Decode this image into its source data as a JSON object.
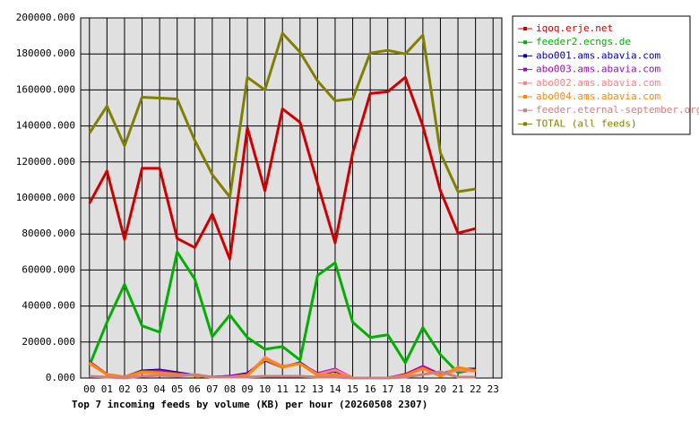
{
  "chart_data": {
    "type": "line",
    "title": "Top 7 incoming feeds by volume (KB) per hour (20260508 2307)",
    "categories": [
      "00",
      "01",
      "02",
      "03",
      "04",
      "05",
      "06",
      "07",
      "08",
      "09",
      "10",
      "11",
      "12",
      "13",
      "14",
      "15",
      "16",
      "17",
      "18",
      "19",
      "20",
      "21",
      "22",
      "23"
    ],
    "ylim": [
      0,
      200000
    ],
    "yticks": [
      {
        "value": 0,
        "label": "0.000"
      },
      {
        "value": 20000,
        "label": "20000.000"
      },
      {
        "value": 40000,
        "label": "40000.000"
      },
      {
        "value": 60000,
        "label": "60000.000"
      },
      {
        "value": 80000,
        "label": "80000.000"
      },
      {
        "value": 100000,
        "label": "100000.000"
      },
      {
        "value": 120000,
        "label": "120000.000"
      },
      {
        "value": 140000,
        "label": "140000.000"
      },
      {
        "value": 160000,
        "label": "160000.000"
      },
      {
        "value": 180000,
        "label": "180000.000"
      },
      {
        "value": 200000,
        "label": "200000.000"
      }
    ],
    "grid": true,
    "legend": "right",
    "series": [
      {
        "name": "iqoq.erje.net",
        "color": "#cc0000",
        "values": [
          97000,
          115000,
          77000,
          116500,
          116500,
          77500,
          72500,
          91000,
          66000,
          139000,
          104000,
          149500,
          142000,
          108000,
          75000,
          125000,
          158000,
          159000,
          167000,
          140000,
          104000,
          80500,
          83000,
          null
        ]
      },
      {
        "name": "feeder2.ecngs.de",
        "color": "#00b000",
        "values": [
          7000,
          31000,
          52000,
          29000,
          25500,
          70000,
          55000,
          23000,
          35000,
          22500,
          16000,
          17500,
          10000,
          57000,
          64000,
          31000,
          22500,
          24000,
          8500,
          28000,
          13000,
          3000,
          5000,
          null
        ]
      },
      {
        "name": "abo001.ams.abavia.com",
        "color": "#000099",
        "values": [
          9000,
          2000,
          500,
          4000,
          4500,
          3000,
          1500,
          500,
          1000,
          2500,
          10000,
          6000,
          8500,
          2000,
          4000,
          0,
          0,
          0,
          2000,
          6000,
          2000,
          5000,
          5000,
          null
        ]
      },
      {
        "name": "abo003.ams.abavia.com",
        "color": "#aa00cc",
        "values": [
          9000,
          2000,
          500,
          3500,
          4000,
          2500,
          1500,
          500,
          1000,
          2000,
          11000,
          6500,
          8000,
          2500,
          5000,
          0,
          0,
          0,
          2000,
          6500,
          2000,
          5000,
          4500,
          null
        ]
      },
      {
        "name": "abo002.ams.abavia.com",
        "color": "#ff8080",
        "values": [
          8000,
          2000,
          500,
          3000,
          3000,
          2000,
          1500,
          500,
          500,
          1500,
          11500,
          6500,
          8000,
          2000,
          4500,
          0,
          0,
          0,
          1500,
          5000,
          1500,
          4500,
          4000,
          null
        ]
      },
      {
        "name": "abo004.ams.abavia.com",
        "color": "#ff8800",
        "values": [
          8500,
          2000,
          500,
          3500,
          3000,
          2000,
          1500,
          500,
          500,
          1500,
          10500,
          6000,
          8000,
          1500,
          2000,
          0,
          0,
          0,
          1500,
          5500,
          1000,
          6000,
          4000,
          null
        ]
      },
      {
        "name": "feeder.eternal-september.org",
        "color": "#cc8080",
        "values": [
          1000,
          500,
          0,
          1000,
          1500,
          1000,
          2000,
          500,
          500,
          500,
          1000,
          1000,
          1000,
          500,
          500,
          0,
          0,
          0,
          500,
          2000,
          3500,
          500,
          500,
          null
        ]
      },
      {
        "name": "TOTAL (all feeds)",
        "color": "#808000",
        "values": [
          136000,
          151000,
          129000,
          156000,
          155500,
          155000,
          132000,
          113000,
          100500,
          167000,
          160000,
          191500,
          181000,
          165000,
          154000,
          155000,
          180500,
          182000,
          180000,
          190500,
          125000,
          103500,
          105000,
          null
        ]
      }
    ]
  }
}
